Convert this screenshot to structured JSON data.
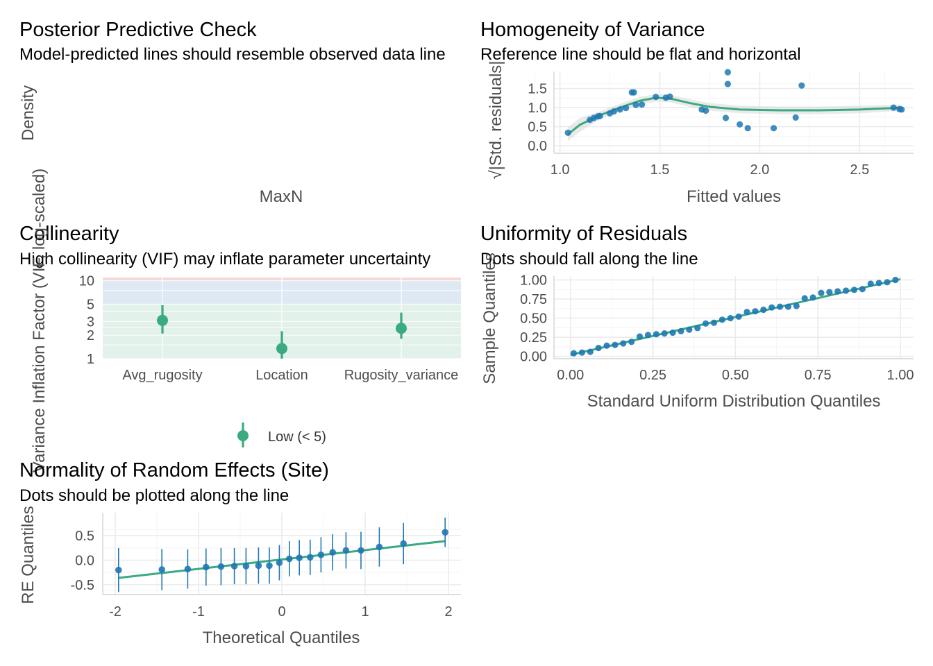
{
  "colors": {
    "point": "#1f78b4",
    "line": "#3aaa80",
    "band": "#d9d9d9",
    "zone_high": "#f8d7d7",
    "zone_moderate": "#dfe9f3",
    "zone_low": "#e2f1ea"
  },
  "chart_data": [
    {
      "type": "line",
      "title": "Posterior Predictive Check",
      "subtitle": "Model-predicted lines should resemble observed data line",
      "xlabel": "MaxN",
      "ylabel": "Density",
      "series": []
    },
    {
      "type": "scatter",
      "title": "Homogeneity of Variance",
      "subtitle": "Reference line should be flat and horizontal",
      "xlabel": "Fitted values",
      "ylabel": "√|Std. residuals|",
      "xlim": [
        0.97,
        2.77
      ],
      "ylim": [
        -0.2,
        1.95
      ],
      "xticks": [
        "1.0",
        "1.5",
        "2.0",
        "2.5"
      ],
      "yticks": [
        "0.0",
        "0.5",
        "1.0",
        "1.5"
      ],
      "points": [
        [
          1.04,
          0.34
        ],
        [
          1.15,
          0.68
        ],
        [
          1.17,
          0.73
        ],
        [
          1.19,
          0.77
        ],
        [
          1.2,
          0.78
        ],
        [
          1.25,
          0.85
        ],
        [
          1.27,
          0.9
        ],
        [
          1.3,
          0.95
        ],
        [
          1.33,
          0.99
        ],
        [
          1.36,
          1.4
        ],
        [
          1.37,
          1.4
        ],
        [
          1.38,
          1.07
        ],
        [
          1.41,
          1.08
        ],
        [
          1.48,
          1.28
        ],
        [
          1.53,
          1.26
        ],
        [
          1.55,
          1.29
        ],
        [
          1.71,
          0.95
        ],
        [
          1.73,
          0.92
        ],
        [
          1.83,
          0.73
        ],
        [
          1.84,
          1.93
        ],
        [
          1.84,
          1.62
        ],
        [
          1.9,
          0.56
        ],
        [
          1.94,
          0.46
        ],
        [
          2.07,
          0.46
        ],
        [
          2.18,
          0.74
        ],
        [
          2.21,
          1.58
        ],
        [
          2.67,
          1.0
        ],
        [
          2.7,
          0.96
        ],
        [
          2.71,
          0.95
        ]
      ],
      "smooth": [
        [
          1.04,
          0.3
        ],
        [
          1.1,
          0.55
        ],
        [
          1.2,
          0.8
        ],
        [
          1.3,
          1.0
        ],
        [
          1.4,
          1.18
        ],
        [
          1.48,
          1.26
        ],
        [
          1.55,
          1.24
        ],
        [
          1.65,
          1.12
        ],
        [
          1.75,
          1.02
        ],
        [
          1.9,
          0.95
        ],
        [
          2.1,
          0.93
        ],
        [
          2.3,
          0.93
        ],
        [
          2.5,
          0.95
        ],
        [
          2.71,
          1.0
        ]
      ]
    },
    {
      "type": "scatter",
      "title": "Collinearity",
      "subtitle": "High collinearity (VIF) may inflate parameter uncertainty",
      "xlabel": "",
      "ylabel": "Variance Inflation Factor (VIF, log-scaled)",
      "ylim": [
        1,
        11
      ],
      "yscale": "log",
      "yticks": [
        1,
        2,
        3,
        5,
        10
      ],
      "categories": [
        "Avg_rugosity",
        "Location",
        "Rugosity_variance"
      ],
      "values": [
        3.1,
        1.35,
        2.45
      ],
      "intervals": [
        [
          2.1,
          4.85
        ],
        [
          1.0,
          2.25
        ],
        [
          1.8,
          3.9
        ]
      ],
      "legend": [
        "Low (< 5)"
      ],
      "legend_position": "bottom"
    },
    {
      "type": "scatter",
      "title": "Uniformity of Residuals",
      "subtitle": "Dots should fall along the line",
      "xlabel": "Standard Uniform Distribution Quantiles",
      "ylabel": "Sample Quantiles",
      "xlim": [
        -0.05,
        1.04
      ],
      "ylim": [
        -0.03,
        1.05
      ],
      "xticks": [
        "0.00",
        "0.25",
        "0.50",
        "0.75",
        "1.00"
      ],
      "yticks": [
        "0.00",
        "0.25",
        "0.50",
        "0.75",
        "1.00"
      ],
      "points": [
        [
          0.01,
          0.04
        ],
        [
          0.035,
          0.05
        ],
        [
          0.06,
          0.06
        ],
        [
          0.085,
          0.11
        ],
        [
          0.11,
          0.14
        ],
        [
          0.135,
          0.15
        ],
        [
          0.16,
          0.17
        ],
        [
          0.185,
          0.19
        ],
        [
          0.21,
          0.26
        ],
        [
          0.235,
          0.28
        ],
        [
          0.26,
          0.29
        ],
        [
          0.285,
          0.3
        ],
        [
          0.31,
          0.31
        ],
        [
          0.335,
          0.33
        ],
        [
          0.36,
          0.35
        ],
        [
          0.385,
          0.37
        ],
        [
          0.41,
          0.43
        ],
        [
          0.435,
          0.44
        ],
        [
          0.46,
          0.48
        ],
        [
          0.485,
          0.5
        ],
        [
          0.51,
          0.52
        ],
        [
          0.535,
          0.58
        ],
        [
          0.56,
          0.59
        ],
        [
          0.585,
          0.61
        ],
        [
          0.61,
          0.64
        ],
        [
          0.635,
          0.65
        ],
        [
          0.66,
          0.65
        ],
        [
          0.685,
          0.66
        ],
        [
          0.71,
          0.76
        ],
        [
          0.735,
          0.77
        ],
        [
          0.76,
          0.83
        ],
        [
          0.785,
          0.84
        ],
        [
          0.81,
          0.85
        ],
        [
          0.835,
          0.86
        ],
        [
          0.86,
          0.87
        ],
        [
          0.885,
          0.88
        ],
        [
          0.91,
          0.95
        ],
        [
          0.935,
          0.96
        ],
        [
          0.96,
          0.97
        ],
        [
          0.985,
          1.0
        ]
      ],
      "line": [
        [
          0.0,
          0.02
        ],
        [
          1.0,
          1.01
        ]
      ]
    },
    {
      "type": "scatter",
      "title": "Normality of Random Effects (Site)",
      "subtitle": "Dots should be plotted along the line",
      "xlabel": "Theoretical Quantiles",
      "ylabel": "RE Quantiles",
      "xlim": [
        -2.15,
        2.15
      ],
      "ylim": [
        -0.7,
        0.97
      ],
      "xticks": [
        "-2",
        "-1",
        "0",
        "1",
        "2"
      ],
      "yticks": [
        "-0.5",
        "0.0",
        "0.5"
      ],
      "points": [
        [
          -1.96,
          -0.2,
          0.45
        ],
        [
          -1.44,
          -0.19,
          0.42
        ],
        [
          -1.13,
          -0.18,
          0.4
        ],
        [
          -0.91,
          -0.14,
          0.38
        ],
        [
          -0.73,
          -0.13,
          0.38
        ],
        [
          -0.57,
          -0.12,
          0.37
        ],
        [
          -0.43,
          -0.12,
          0.37
        ],
        [
          -0.28,
          -0.11,
          0.37
        ],
        [
          -0.15,
          -0.11,
          0.37
        ],
        [
          -0.03,
          -0.05,
          0.36
        ],
        [
          0.09,
          0.03,
          0.36
        ],
        [
          0.21,
          0.05,
          0.36
        ],
        [
          0.34,
          0.06,
          0.36
        ],
        [
          0.47,
          0.11,
          0.36
        ],
        [
          0.61,
          0.16,
          0.37
        ],
        [
          0.77,
          0.2,
          0.37
        ],
        [
          0.95,
          0.2,
          0.38
        ],
        [
          1.17,
          0.27,
          0.4
        ],
        [
          1.46,
          0.34,
          0.42
        ],
        [
          1.96,
          0.57,
          0.3
        ]
      ],
      "line": [
        [
          -1.96,
          -0.36
        ],
        [
          1.96,
          0.39
        ]
      ]
    }
  ]
}
